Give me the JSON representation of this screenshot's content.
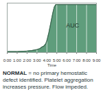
{
  "chart_data": {
    "type": "area",
    "x": [
      0,
      1,
      2,
      2.5,
      3,
      3.3,
      3.5,
      3.7,
      3.9,
      4.0,
      4.2,
      4.4,
      4.6,
      4.75,
      4.9,
      5,
      6,
      7,
      8,
      9
    ],
    "values": [
      2,
      2,
      3,
      4,
      6,
      8,
      11,
      13,
      18,
      24,
      40,
      60,
      80,
      92,
      97,
      97,
      97,
      97,
      97,
      97
    ],
    "color": "#5f9d7c",
    "xlim": [
      0,
      9
    ],
    "xticks": [
      {
        "value": 0,
        "label": "0:00"
      },
      {
        "value": 1,
        "label": "1:00"
      },
      {
        "value": 2,
        "label": "2:00"
      },
      {
        "value": 3,
        "label": "3:00"
      },
      {
        "value": 4,
        "label": "4:00"
      },
      {
        "value": 5,
        "label": "5:00"
      },
      {
        "value": 6,
        "label": "6:00"
      },
      {
        "value": 7,
        "label": "7:00"
      },
      {
        "value": 8,
        "label": "8:00"
      },
      {
        "value": 9,
        "label": "9:00"
      }
    ],
    "ylim": [
      0,
      100
    ],
    "x_label": "Time",
    "grid": true,
    "tick_labels": "x",
    "annotations": [
      {
        "text": "AUC",
        "x": 6.6,
        "y": 55
      }
    ],
    "caption": {
      "bold": "NORMAL",
      "text": " = no primary hemostatic defect identified. Platelet aggregation increases pressure. Flow impeded."
    }
  }
}
